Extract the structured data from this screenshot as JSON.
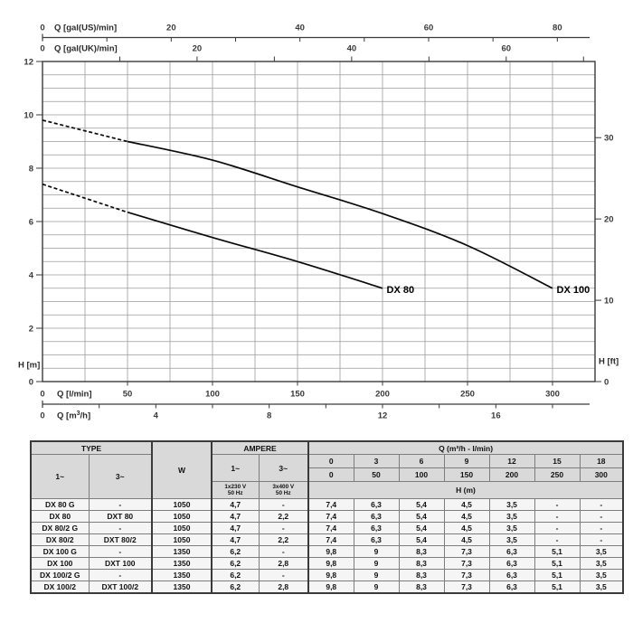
{
  "chart_data": {
    "type": "line",
    "title": "",
    "x_range_lmin": [
      0,
      325
    ],
    "y_range_m": [
      0,
      12
    ],
    "grid": {
      "x_step_lmin": 25,
      "y_step_m": 0.5,
      "visible": true
    },
    "x_axes": {
      "gal_us": {
        "label": "Q [gal(US)/min]",
        "tick_labels": [
          0,
          20,
          40,
          60,
          80
        ],
        "minor_tick_step": 10,
        "lmin_per_unit": 3.785411784
      },
      "gal_uk": {
        "label": "Q [gal(UK)/min]",
        "tick_labels": [
          0,
          20,
          40,
          60
        ],
        "minor_tick_step": 10,
        "lmin_per_unit": 4.54609
      },
      "lmin": {
        "label": "Q [l/min]",
        "tick_labels": [
          0,
          50,
          100,
          150,
          200,
          250,
          300
        ],
        "lmin_per_unit": 1
      },
      "m3h": {
        "label": "Q [m³/h]",
        "label_parts": [
          "Q [m",
          "3",
          "/h]"
        ],
        "tick_labels": [
          0,
          4,
          8,
          12,
          16
        ],
        "minor_tick_step": 2,
        "lmin_per_unit": 16.6667
      }
    },
    "y_axes": {
      "meters": {
        "label": "H [m]",
        "tick_labels": [
          0,
          2,
          4,
          6,
          8,
          10,
          12
        ]
      },
      "feet": {
        "label": "H [ft]",
        "tick_labels": [
          0,
          10,
          20,
          30
        ],
        "m_per_unit": 0.3048
      }
    },
    "series": [
      {
        "name": "DX 80",
        "dashed_until_lmin": 50,
        "points_lmin_m": [
          [
            0,
            7.4
          ],
          [
            50,
            6.35
          ],
          [
            100,
            5.4
          ],
          [
            150,
            4.5
          ],
          [
            200,
            3.5
          ]
        ]
      },
      {
        "name": "DX 100",
        "dashed_until_lmin": 50,
        "points_lmin_m": [
          [
            0,
            9.8
          ],
          [
            50,
            9.0
          ],
          [
            100,
            8.3
          ],
          [
            150,
            7.3
          ],
          [
            200,
            6.3
          ],
          [
            250,
            5.1
          ],
          [
            300,
            3.5
          ]
        ]
      }
    ]
  },
  "table": {
    "header": {
      "type": "TYPE",
      "w": "W",
      "ampere": "AMPERE",
      "q": "Q (m³/h - l/min)",
      "phase1": "1~",
      "phase3": "3~",
      "amp_phase1": "1~",
      "amp_phase3": "3~",
      "volt1_line1": "1x230 V",
      "volt1_line2": "50 Hz",
      "volt2_line1": "3x400 V",
      "volt2_line2": "50 Hz",
      "h_m": "H (m)",
      "q_m3h": [
        "0",
        "3",
        "6",
        "9",
        "12",
        "15",
        "18"
      ],
      "q_lmin": [
        "0",
        "50",
        "100",
        "150",
        "200",
        "250",
        "300"
      ]
    },
    "rows": [
      {
        "type_1ph": "DX 80 G",
        "type_3ph": "-",
        "w": "1050",
        "amp_1ph": "4,7",
        "amp_3ph": "-",
        "h_values": [
          "7,4",
          "6,3",
          "5,4",
          "4,5",
          "3,5",
          "-",
          "-"
        ]
      },
      {
        "type_1ph": "DX 80",
        "type_3ph": "DXT 80",
        "w": "1050",
        "amp_1ph": "4,7",
        "amp_3ph": "2,2",
        "h_values": [
          "7,4",
          "6,3",
          "5,4",
          "4,5",
          "3,5",
          "-",
          "-"
        ]
      },
      {
        "type_1ph": "DX 80/2 G",
        "type_3ph": "-",
        "w": "1050",
        "amp_1ph": "4,7",
        "amp_3ph": "-",
        "h_values": [
          "7,4",
          "6,3",
          "5,4",
          "4,5",
          "3,5",
          "-",
          "-"
        ]
      },
      {
        "type_1ph": "DX 80/2",
        "type_3ph": "DXT 80/2",
        "w": "1050",
        "amp_1ph": "4,7",
        "amp_3ph": "2,2",
        "h_values": [
          "7,4",
          "6,3",
          "5,4",
          "4,5",
          "3,5",
          "-",
          "-"
        ]
      },
      {
        "type_1ph": "DX 100 G",
        "type_3ph": "-",
        "w": "1350",
        "amp_1ph": "6,2",
        "amp_3ph": "-",
        "h_values": [
          "9,8",
          "9",
          "8,3",
          "7,3",
          "6,3",
          "5,1",
          "3,5"
        ]
      },
      {
        "type_1ph": "DX 100",
        "type_3ph": "DXT 100",
        "w": "1350",
        "amp_1ph": "6,2",
        "amp_3ph": "2,8",
        "h_values": [
          "9,8",
          "9",
          "8,3",
          "7,3",
          "6,3",
          "5,1",
          "3,5"
        ]
      },
      {
        "type_1ph": "DX 100/2 G",
        "type_3ph": "-",
        "w": "1350",
        "amp_1ph": "6,2",
        "amp_3ph": "-",
        "h_values": [
          "9,8",
          "9",
          "8,3",
          "7,3",
          "6,3",
          "5,1",
          "3,5"
        ]
      },
      {
        "type_1ph": "DX 100/2",
        "type_3ph": "DXT 100/2",
        "w": "1350",
        "amp_1ph": "6,2",
        "amp_3ph": "2,8",
        "h_values": [
          "9,8",
          "9",
          "8,3",
          "7,3",
          "6,3",
          "5,1",
          "3,5"
        ]
      }
    ],
    "colors": {
      "header_bg": "#d9d9d9",
      "body_bg": "#f5f5f5",
      "border": "#7d7d7d",
      "outer_border": "#3a3a3a"
    }
  }
}
